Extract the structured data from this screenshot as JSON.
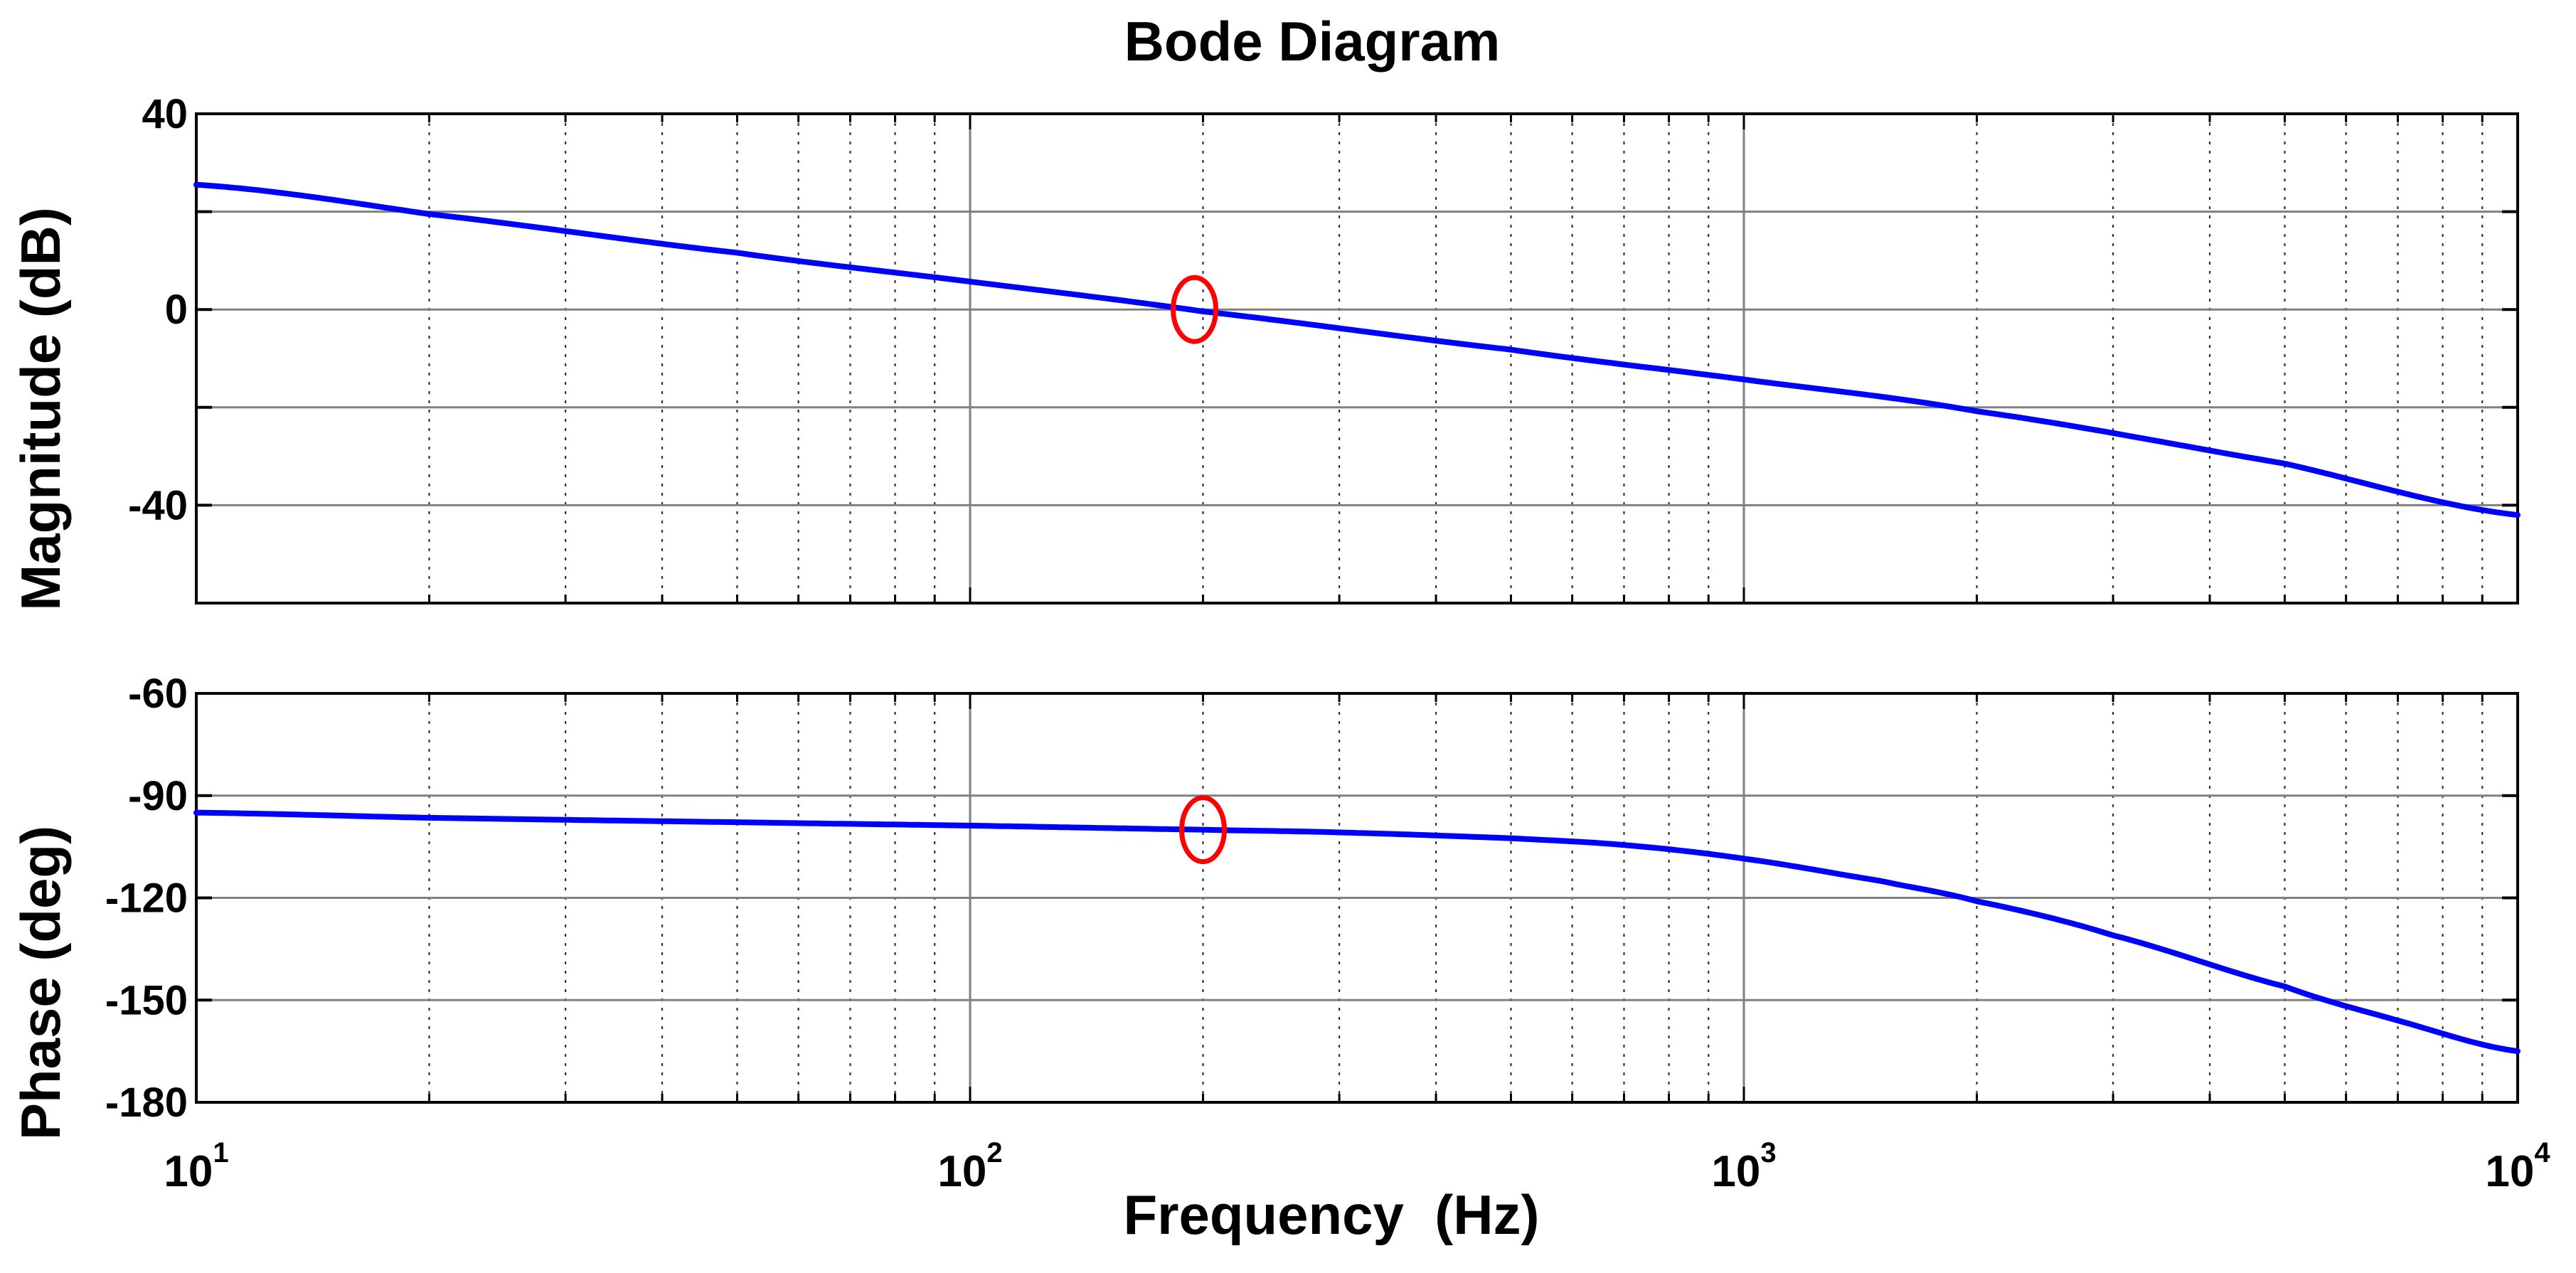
{
  "chart_data": [
    {
      "type": "line",
      "panel": "magnitude",
      "title": "Bode Diagram",
      "xlabel": "Frequency  (Hz)",
      "ylabel": "Magnitude (dB)",
      "xscale": "log",
      "xlim": [
        10,
        10000
      ],
      "ylim": [
        -60,
        40
      ],
      "yticks": [
        40,
        0,
        -40
      ],
      "ytick_labels": [
        "40",
        "0",
        "-40"
      ],
      "ygrid": [
        20,
        0,
        -20,
        -40
      ],
      "grid": true,
      "series": [
        {
          "name": "magnitude",
          "color": "#0000ff",
          "x": [
            10,
            20,
            50,
            100,
            200,
            500,
            1000,
            2000,
            5000,
            10000
          ],
          "values": [
            25.5,
            19.5,
            11.6,
            5.7,
            -0.4,
            -8.2,
            -14.3,
            -20.8,
            -31.5,
            -42
          ]
        }
      ],
      "annotations": [
        {
          "type": "ellipse",
          "color": "#ff0000",
          "x": 195,
          "y": 0
        }
      ]
    },
    {
      "type": "line",
      "panel": "phase",
      "xlabel": "Frequency  (Hz)",
      "ylabel": "Phase (deg)",
      "xscale": "log",
      "xlim": [
        10,
        10000
      ],
      "ylim": [
        -180,
        -60
      ],
      "yticks": [
        -60,
        -90,
        -120,
        -150,
        -180
      ],
      "ytick_labels": [
        "-60",
        "-90",
        "-120",
        "-150",
        "-180"
      ],
      "grid": true,
      "xticks": [
        10,
        100,
        1000,
        10000
      ],
      "xtick_labels": [
        {
          "base": "10",
          "exp": "1"
        },
        {
          "base": "10",
          "exp": "2"
        },
        {
          "base": "10",
          "exp": "3"
        },
        {
          "base": "10",
          "exp": "4"
        }
      ],
      "series": [
        {
          "name": "phase",
          "color": "#0000ff",
          "x": [
            10,
            20,
            50,
            100,
            200,
            300,
            500,
            700,
            1000,
            1500,
            2000,
            3000,
            5000,
            7000,
            10000
          ],
          "values": [
            -95,
            -96.5,
            -97.8,
            -98.8,
            -100,
            -100.8,
            -102.5,
            -104.5,
            -108.5,
            -115,
            -121,
            -131,
            -146,
            -156,
            -165
          ]
        }
      ],
      "annotations": [
        {
          "type": "ellipse",
          "color": "#ff0000",
          "x": 200,
          "y": -100
        }
      ]
    }
  ]
}
